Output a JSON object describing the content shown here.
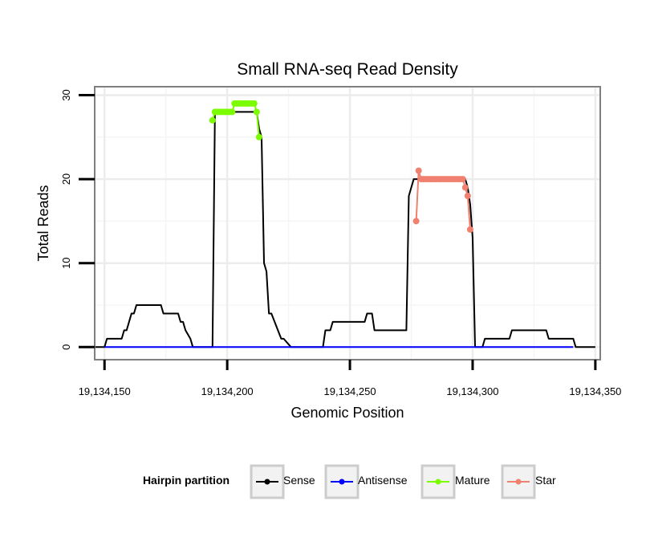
{
  "chart_data": {
    "type": "line",
    "title": "Small RNA-seq Read Density",
    "xlabel": "Genomic Position",
    "ylabel": "Total Reads",
    "xlim": [
      19134146,
      19134352
    ],
    "ylim": [
      -1.5,
      31
    ],
    "x_ticks": [
      19134150,
      19134200,
      19134250,
      19134300,
      19134350
    ],
    "x_tick_labels": [
      "19,134,150",
      "19,134,200",
      "19,134,250",
      "19,134,300",
      "19,134,350"
    ],
    "y_ticks": [
      0,
      10,
      20,
      30
    ],
    "y_tick_labels": [
      "0",
      "10",
      "20",
      "30"
    ],
    "grid": true,
    "legend": {
      "title": "Hairpin partition",
      "position": "bottom",
      "entries": [
        {
          "label": "Sense",
          "color": "#000000"
        },
        {
          "label": "Antisense",
          "color": "#0000ff"
        },
        {
          "label": "Mature",
          "color": "#7cfc00"
        },
        {
          "label": "Star",
          "color": "#f08070"
        }
      ]
    },
    "series": [
      {
        "name": "Sense",
        "color": "#000000",
        "x": [
          19134146,
          19134149,
          19134150,
          19134151,
          19134157,
          19134158,
          19134159,
          19134160,
          19134161,
          19134162,
          19134163,
          19134165,
          19134166,
          19134173,
          19134174,
          19134180,
          19134181,
          19134182,
          19134183,
          19134185,
          19134186,
          19134194,
          19134195,
          19134212,
          19134213,
          19134214,
          19134215,
          19134216,
          19134217,
          19134218,
          19134222,
          19134223,
          19134226,
          19134239,
          19134240,
          19134242,
          19134243,
          19134256,
          19134257,
          19134259,
          19134260,
          19134273,
          19134274,
          19134276,
          19134297,
          19134298,
          19134299,
          19134300,
          19134301,
          19134304,
          19134305,
          19134315,
          19134316,
          19134330,
          19134331,
          19134341,
          19134342,
          19134350
        ],
        "y": [
          0,
          0,
          0,
          1,
          1,
          2,
          2,
          3,
          4,
          4,
          5,
          5,
          5,
          5,
          4,
          4,
          3,
          3,
          2,
          1,
          0,
          0,
          28,
          28,
          26,
          25,
          10,
          9,
          4,
          4,
          1,
          1,
          0,
          0,
          2,
          2,
          3,
          3,
          4,
          4,
          2,
          2,
          18,
          20,
          20,
          19,
          17,
          13,
          0,
          0,
          1,
          1,
          2,
          2,
          1,
          1,
          0,
          0
        ]
      },
      {
        "name": "Antisense",
        "color": "#0000ff",
        "x": [
          19134150,
          19134341
        ],
        "y": [
          0,
          0
        ]
      },
      {
        "name": "Mature",
        "color": "#7cfc00",
        "x": [
          19134194,
          19134195,
          19134196,
          19134197,
          19134198,
          19134199,
          19134200,
          19134201,
          19134202,
          19134203,
          19134204,
          19134205,
          19134206,
          19134207,
          19134208,
          19134209,
          19134210,
          19134211,
          19134212,
          19134213
        ],
        "y": [
          27,
          28,
          28,
          28,
          28,
          28,
          28,
          28,
          28,
          29,
          29,
          29,
          29,
          29,
          29,
          29,
          29,
          29,
          28,
          25
        ]
      },
      {
        "name": "Star",
        "color": "#f08070",
        "x": [
          19134277,
          19134278,
          19134279,
          19134280,
          19134281,
          19134282,
          19134283,
          19134284,
          19134285,
          19134286,
          19134287,
          19134288,
          19134289,
          19134290,
          19134291,
          19134292,
          19134293,
          19134294,
          19134295,
          19134296,
          19134297,
          19134298,
          19134299
        ],
        "y": [
          15,
          21,
          20,
          20,
          20,
          20,
          20,
          20,
          20,
          20,
          20,
          20,
          20,
          20,
          20,
          20,
          20,
          20,
          20,
          20,
          19,
          18,
          14
        ]
      }
    ]
  }
}
